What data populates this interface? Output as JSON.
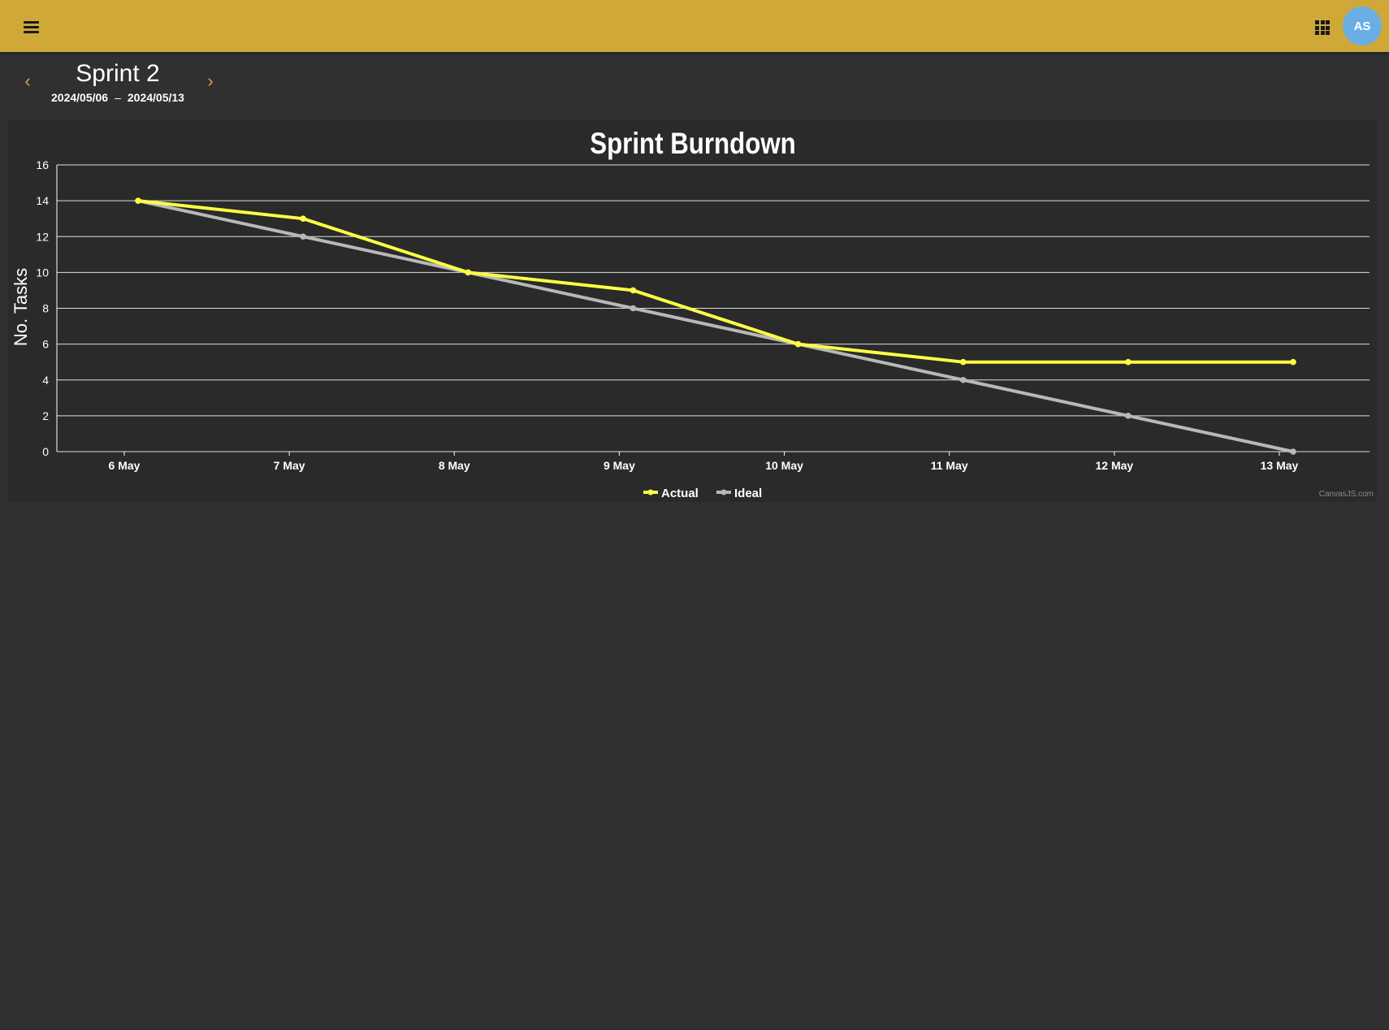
{
  "header": {
    "menu_icon": "menu-icon",
    "apps_icon": "apps-grid-icon",
    "avatar_initials": "AS",
    "bar_color": "#d0a838",
    "avatar_color": "#6aaee6"
  },
  "sprint": {
    "title": "Sprint 2",
    "start_date": "2024/05/06",
    "separator": "–",
    "end_date": "2024/05/13",
    "prev_icon": "chevron-left-icon",
    "next_icon": "chevron-right-icon",
    "accent_color": "#d0a838"
  },
  "chart_data": {
    "type": "line",
    "title": "Sprint Burndown",
    "xlabel": "",
    "ylabel": "No. Tasks",
    "categories": [
      "6 May",
      "7 May",
      "8 May",
      "9 May",
      "10 May",
      "11 May",
      "12 May",
      "13 May"
    ],
    "ylim": [
      0,
      16
    ],
    "yticks": [
      0,
      2,
      4,
      6,
      8,
      10,
      12,
      14,
      16
    ],
    "grid": true,
    "legend_position": "bottom",
    "series": [
      {
        "name": "Actual",
        "color": "#ffff44",
        "values": [
          14,
          13,
          10,
          9,
          6,
          5,
          5,
          5
        ]
      },
      {
        "name": "Ideal",
        "color": "#b8b8b8",
        "values": [
          14,
          12,
          10,
          8,
          6,
          4,
          2,
          0
        ]
      }
    ],
    "watermark": "CanvasJS.com"
  }
}
